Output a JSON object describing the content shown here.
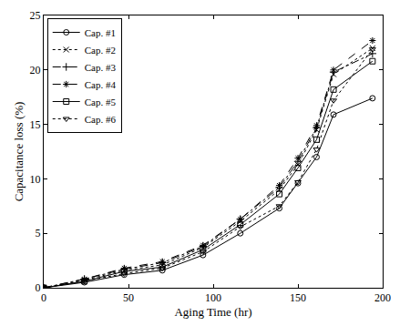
{
  "chart_data": {
    "type": "line",
    "x_label": "Aging Time (hr)",
    "y_label": "Capacitance loss (%)",
    "x": [
      0,
      24,
      47.5,
      70,
      94,
      116,
      139,
      150,
      161,
      171,
      194
    ],
    "series": [
      {
        "name": "Cap. #1",
        "color": "#000000",
        "marker": "circle",
        "line_style": "solid",
        "values": [
          0,
          0.5,
          1.2,
          1.6,
          3.0,
          5.0,
          7.3,
          9.6,
          12.0,
          15.9,
          17.4
        ]
      },
      {
        "name": "Cap. #2",
        "color": "#000000",
        "marker": "x",
        "line_style": "dotted",
        "values": [
          0,
          0.7,
          1.6,
          2.1,
          3.7,
          6.1,
          9.0,
          11.3,
          14.5,
          19.6,
          22.0
        ]
      },
      {
        "name": "Cap. #3",
        "color": "#000000",
        "marker": "plus",
        "line_style": "dashdot",
        "values": [
          0,
          0.8,
          1.7,
          2.3,
          3.8,
          6.3,
          9.2,
          11.6,
          14.7,
          19.8,
          21.5
        ]
      },
      {
        "name": "Cap. #4",
        "color": "#000000",
        "marker": "asterisk",
        "line_style": "dashed",
        "values": [
          0,
          0.8,
          1.8,
          2.4,
          3.9,
          6.3,
          9.4,
          11.9,
          14.9,
          20.0,
          22.7
        ]
      },
      {
        "name": "Cap. #5",
        "color": "#000000",
        "marker": "square",
        "line_style": "solid",
        "values": [
          0,
          0.6,
          1.5,
          1.9,
          3.5,
          5.8,
          8.6,
          11.0,
          13.6,
          18.2,
          20.8
        ]
      },
      {
        "name": "Cap. #6",
        "color": "#000000",
        "marker": "triangle-down",
        "line_style": "dotted",
        "values": [
          0,
          0.6,
          1.3,
          1.8,
          3.3,
          5.6,
          7.5,
          9.7,
          12.7,
          17.2,
          21.9
        ]
      }
    ],
    "xlim": [
      0,
      200
    ],
    "xticks": [
      0,
      50,
      100,
      150,
      200
    ],
    "ylim": [
      0,
      25
    ],
    "yticks": [
      0,
      5,
      10,
      15,
      20,
      25
    ],
    "grid": false,
    "legend": "upper left"
  }
}
